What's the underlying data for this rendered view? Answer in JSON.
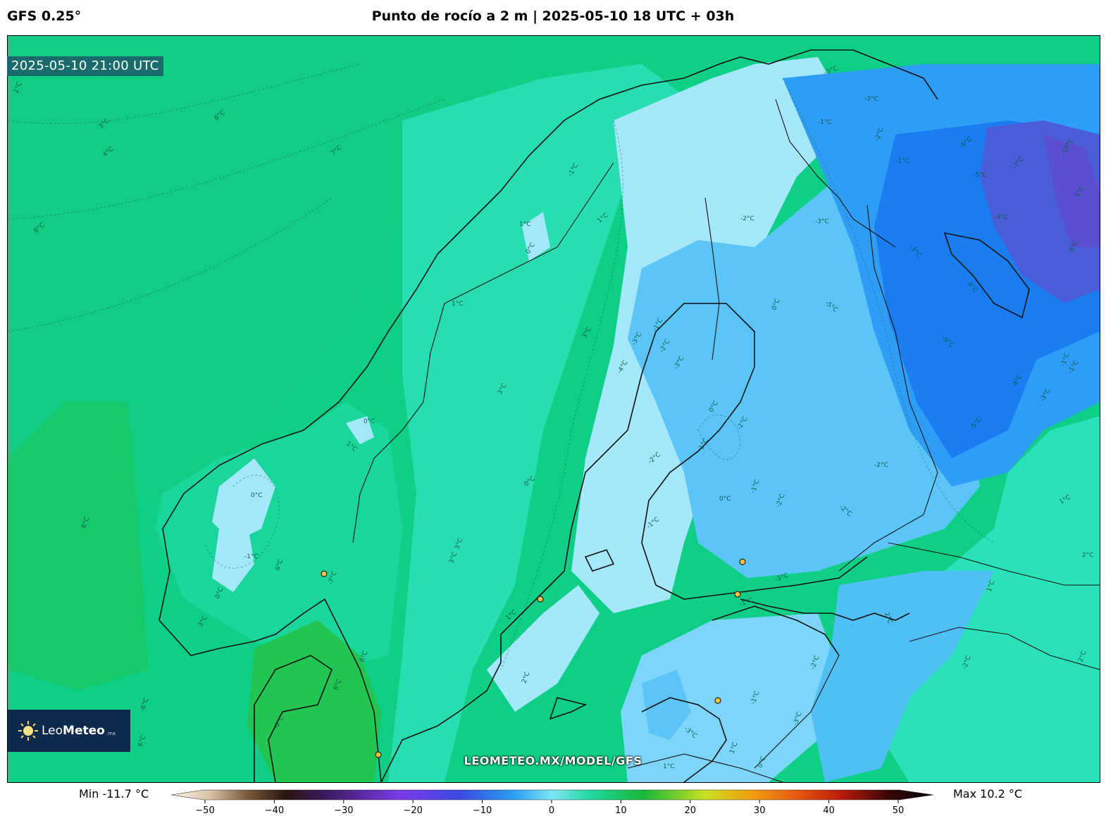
{
  "header": {
    "model": "GFS 0.25°",
    "title": "Punto de rocío a 2 m | 2025-05-10 18 UTC + 03h"
  },
  "map": {
    "valid_time": "2025-05-10 21:00 UTC",
    "watermark": "LEOMETEO.MX/MODEL/GFS",
    "logo": {
      "name_light": "Leo",
      "name_bold": "Meteo",
      "suffix": ".mx"
    },
    "contour_labels": [
      "2°C",
      "3°C",
      "4°C",
      "6°C",
      "7°C",
      "0°C",
      "1°C",
      "-1°C",
      "-2°C",
      "-3°C",
      "-4°C",
      "-5°C",
      "-6°C",
      "-7°C",
      "-8°C",
      "-9°C",
      "-10°C",
      "5°C",
      "8°C"
    ],
    "colors": {
      "very_warm_green": "#19c24a",
      "warm_green": "#0fcf7a",
      "sea_green": "#1fd491",
      "teal": "#2fe6c0",
      "pale_cyan": "#a9e9fb",
      "light_blue": "#5cc6f7",
      "blue": "#2b9bf6",
      "deep_blue": "#1a78f0",
      "violet": "#4a5ad8"
    }
  },
  "colorbar": {
    "min_label": "Min -11.7 °C",
    "max_label": "Max 10.2 °C",
    "ticks": [
      "−50",
      "−40",
      "−30",
      "−20",
      "−10",
      "0",
      "10",
      "20",
      "30",
      "40",
      "50"
    ],
    "range": [
      -50,
      50
    ]
  }
}
